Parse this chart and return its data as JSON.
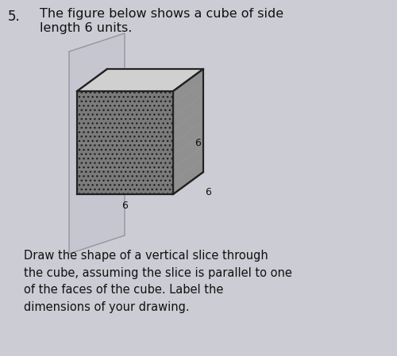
{
  "background_color": "#ccccd4",
  "number_label": "5.",
  "title_line1": "The figure below shows a cube of side",
  "title_line2": "length 6 units.",
  "bottom_text": "Draw the shape of a vertical slice through\nthe cube, assuming the slice is parallel to one\nof the faces of the cube. Label the\ndimensions of your drawing.",
  "side_length": "6",
  "cube_front_color": "#7a7a7a",
  "cube_top_color": "#d0d0d0",
  "cube_right_color": "#909090",
  "cube_edge_color": "#222222",
  "plane_face_color": "#c0c0cc",
  "plane_edge_color": "#555566",
  "label_color": "#111111",
  "hatch_color": "#666666",
  "font_size_title": 11.5,
  "font_size_bottom": 10.5,
  "font_size_number": 12,
  "font_size_labels": 9
}
